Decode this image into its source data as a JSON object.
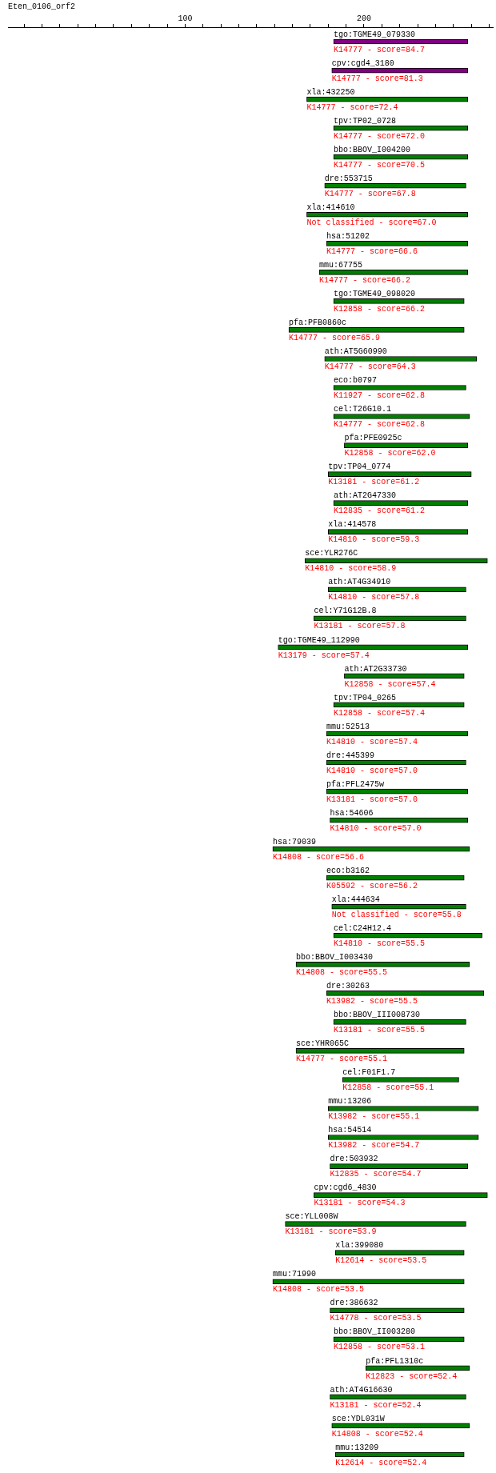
{
  "chart_data": {
    "type": "bar",
    "orientation": "horizontal",
    "title": "Eten_0106_orf2",
    "categories": [
      "tgo:TGME49_079330",
      "cpv:cgd4_3180",
      "xla:432250",
      "tpv:TP02_0728",
      "bbo:BBOV_I004200",
      "dre:553715",
      "xla:414610",
      "hsa:51202",
      "mmu:67755",
      "tgo:TGME49_098020",
      "pfa:PFB0860c",
      "ath:AT5G60990",
      "eco:b0797",
      "cel:T26G10.1",
      "pfa:PFE0925c",
      "tpv:TP04_0774",
      "ath:AT2G47330",
      "xla:414578",
      "sce:YLR276C",
      "ath:AT4G34910",
      "cel:Y71G12B.8",
      "tgo:TGME49_112990",
      "ath:AT2G33730",
      "tpv:TP04_0265",
      "mmu:52513",
      "dre:445399",
      "pfa:PFL2475w",
      "hsa:54606",
      "hsa:79039",
      "eco:b3162",
      "xla:444634",
      "cel:C24H12.4",
      "bbo:BBOV_I003430",
      "dre:30263",
      "bbo:BBOV_III008730",
      "sce:YHR065C",
      "cel:F01F1.7",
      "mmu:13206",
      "hsa:54514",
      "dre:503932",
      "cpv:cgd6_4830",
      "sce:YLL008W",
      "xla:399080",
      "mmu:71990",
      "dre:386632",
      "bbo:BBOV_II003280",
      "pfa:PFL1310c",
      "ath:AT4G16630",
      "sce:YDL031W",
      "mmu:13209"
    ],
    "base": [
      183,
      182,
      168,
      183,
      183,
      178,
      168,
      179,
      175,
      183,
      158,
      178,
      183,
      183,
      189,
      180,
      183,
      180,
      167,
      180,
      172,
      152,
      189,
      183,
      179,
      179,
      179,
      181,
      149,
      179,
      182,
      183,
      162,
      179,
      183,
      162,
      188,
      180,
      180,
      181,
      172,
      156,
      184,
      149,
      181,
      183,
      201,
      181,
      182,
      184
    ],
    "values": [
      75,
      76,
      90,
      75,
      75,
      79,
      90,
      79,
      83,
      73,
      98,
      85,
      74,
      76,
      69,
      80,
      75,
      78,
      102,
      77,
      85,
      106,
      67,
      73,
      79,
      78,
      79,
      77,
      110,
      77,
      75,
      83,
      97,
      88,
      74,
      94,
      65,
      84,
      84,
      77,
      97,
      101,
      72,
      107,
      75,
      73,
      58,
      76,
      77,
      72
    ],
    "colors": [
      "#800080",
      "#800080",
      "#008000",
      "#008000",
      "#008000",
      "#008000",
      "#008000",
      "#008000",
      "#008000",
      "#008000",
      "#008000",
      "#008000",
      "#008000",
      "#008000",
      "#008000",
      "#008000",
      "#008000",
      "#008000",
      "#008000",
      "#008000",
      "#008000",
      "#008000",
      "#008000",
      "#008000",
      "#008000",
      "#008000",
      "#008000",
      "#008000",
      "#008000",
      "#008000",
      "#008000",
      "#008000",
      "#008000",
      "#008000",
      "#008000",
      "#008000",
      "#008000",
      "#008000",
      "#008000",
      "#008000",
      "#008000",
      "#008000",
      "#008000",
      "#008000",
      "#008000",
      "#008000",
      "#008000",
      "#008000",
      "#008000",
      "#008000"
    ],
    "xlim": [
      1,
      272
    ],
    "xticks": [
      {
        "value": 10,
        "label": null
      },
      {
        "value": 20,
        "label": null
      },
      {
        "value": 30,
        "label": null
      },
      {
        "value": 40,
        "label": null
      },
      {
        "value": 50,
        "label": null
      },
      {
        "value": 60,
        "label": null
      },
      {
        "value": 70,
        "label": null
      },
      {
        "value": 80,
        "label": null
      },
      {
        "value": 90,
        "label": null
      },
      100,
      {
        "value": 110,
        "label": null
      },
      {
        "value": 120,
        "label": null
      },
      {
        "value": 130,
        "label": null
      },
      {
        "value": 140,
        "label": null
      },
      {
        "value": 150,
        "label": null
      },
      {
        "value": 160,
        "label": null
      },
      {
        "value": 170,
        "label": null
      },
      {
        "value": 180,
        "label": null
      },
      {
        "value": 190,
        "label": null
      },
      200,
      {
        "value": 210,
        "label": null
      },
      {
        "value": 220,
        "label": null
      },
      {
        "value": 230,
        "label": null
      },
      {
        "value": 240,
        "label": null
      },
      {
        "value": 250,
        "label": null
      },
      {
        "value": 260,
        "label": null
      },
      {
        "value": 270,
        "label": null
      }
    ],
    "annotations": [
      {
        "text": "K14777 - score=84.7",
        "x": 183,
        "y": "tgo:TGME49_079330"
      },
      {
        "text": "K14777 - score=81.3",
        "x": 182,
        "y": "cpv:cgd4_3180"
      },
      {
        "text": "K14777 - score=72.4",
        "x": 168,
        "y": "xla:432250"
      },
      {
        "text": "K14777 - score=72.0",
        "x": 183,
        "y": "tpv:TP02_0728"
      },
      {
        "text": "K14777 - score=70.5",
        "x": 183,
        "y": "bbo:BBOV_I004200"
      },
      {
        "text": "K14777 - score=67.8",
        "x": 178,
        "y": "dre:553715"
      },
      {
        "text": "Not classified - score=67.0",
        "x": 168,
        "y": "xla:414610"
      },
      {
        "text": "K14777 - score=66.6",
        "x": 179,
        "y": "hsa:51202"
      },
      {
        "text": "K14777 - score=66.2",
        "x": 175,
        "y": "mmu:67755"
      },
      {
        "text": "K12858 - score=66.2",
        "x": 183,
        "y": "tgo:TGME49_098020"
      },
      {
        "text": "K14777 - score=65.9",
        "x": 158,
        "y": "pfa:PFB0860c"
      },
      {
        "text": "K14777 - score=64.3",
        "x": 178,
        "y": "ath:AT5G60990"
      },
      {
        "text": "K11927 - score=62.8",
        "x": 183,
        "y": "eco:b0797"
      },
      {
        "text": "K14777 - score=62.8",
        "x": 183,
        "y": "cel:T26G10.1"
      },
      {
        "text": "K12858 - score=62.0",
        "x": 189,
        "y": "pfa:PFE0925c"
      },
      {
        "text": "K13181 - score=61.2",
        "x": 180,
        "y": "tpv:TP04_0774"
      },
      {
        "text": "K12835 - score=61.2",
        "x": 183,
        "y": "ath:AT2G47330"
      },
      {
        "text": "K14810 - score=59.3",
        "x": 180,
        "y": "xla:414578"
      },
      {
        "text": "K14810 - score=58.9",
        "x": 167,
        "y": "sce:YLR276C"
      },
      {
        "text": "K14810 - score=57.8",
        "x": 180,
        "y": "ath:AT4G34910"
      },
      {
        "text": "K13181 - score=57.8",
        "x": 172,
        "y": "cel:Y71G12B.8"
      },
      {
        "text": "K13179 - score=57.4",
        "x": 152,
        "y": "tgo:TGME49_112990"
      },
      {
        "text": "K12858 - score=57.4",
        "x": 189,
        "y": "ath:AT2G33730"
      },
      {
        "text": "K12858 - score=57.4",
        "x": 183,
        "y": "tpv:TP04_0265"
      },
      {
        "text": "K14810 - score=57.4",
        "x": 179,
        "y": "mmu:52513"
      },
      {
        "text": "K14810 - score=57.0",
        "x": 179,
        "y": "dre:445399"
      },
      {
        "text": "K13181 - score=57.0",
        "x": 179,
        "y": "pfa:PFL2475w"
      },
      {
        "text": "K14810 - score=57.0",
        "x": 181,
        "y": "hsa:54606"
      },
      {
        "text": "K14808 - score=56.6",
        "x": 149,
        "y": "hsa:79039"
      },
      {
        "text": "K05592 - score=56.2",
        "x": 179,
        "y": "eco:b3162"
      },
      {
        "text": "Not classified - score=55.8",
        "x": 182,
        "y": "xla:444634"
      },
      {
        "text": "K14810 - score=55.5",
        "x": 183,
        "y": "cel:C24H12.4"
      },
      {
        "text": "K14808 - score=55.5",
        "x": 162,
        "y": "bbo:BBOV_I003430"
      },
      {
        "text": "K13982 - score=55.5",
        "x": 179,
        "y": "dre:30263"
      },
      {
        "text": "K13181 - score=55.5",
        "x": 183,
        "y": "bbo:BBOV_III008730"
      },
      {
        "text": "K14777 - score=55.1",
        "x": 162,
        "y": "sce:YHR065C"
      },
      {
        "text": "K12858 - score=55.1",
        "x": 188,
        "y": "cel:F01F1.7"
      },
      {
        "text": "K13982 - score=55.1",
        "x": 180,
        "y": "mmu:13206"
      },
      {
        "text": "K13982 - score=54.7",
        "x": 180,
        "y": "hsa:54514"
      },
      {
        "text": "K12835 - score=54.7",
        "x": 181,
        "y": "dre:503932"
      },
      {
        "text": "K13181 - score=54.3",
        "x": 172,
        "y": "cpv:cgd6_4830"
      },
      {
        "text": "K13181 - score=53.9",
        "x": 156,
        "y": "sce:YLL008W"
      },
      {
        "text": "K12614 - score=53.5",
        "x": 184,
        "y": "xla:399080"
      },
      {
        "text": "K14808 - score=53.5",
        "x": 149,
        "y": "mmu:71990"
      },
      {
        "text": "K14778 - score=53.5",
        "x": 181,
        "y": "dre:386632"
      },
      {
        "text": "K12858 - score=53.1",
        "x": 183,
        "y": "bbo:BBOV_II003280"
      },
      {
        "text": "K12823 - score=52.4",
        "x": 201,
        "y": "pfa:PFL1310c"
      },
      {
        "text": "K13181 - score=52.4",
        "x": 181,
        "y": "ath:AT4G16630"
      },
      {
        "text": "K14808 - score=52.4",
        "x": 182,
        "y": "sce:YDL031W"
      },
      {
        "text": "K12614 - score=52.4",
        "x": 184,
        "y": "mmu:13209"
      }
    ]
  }
}
